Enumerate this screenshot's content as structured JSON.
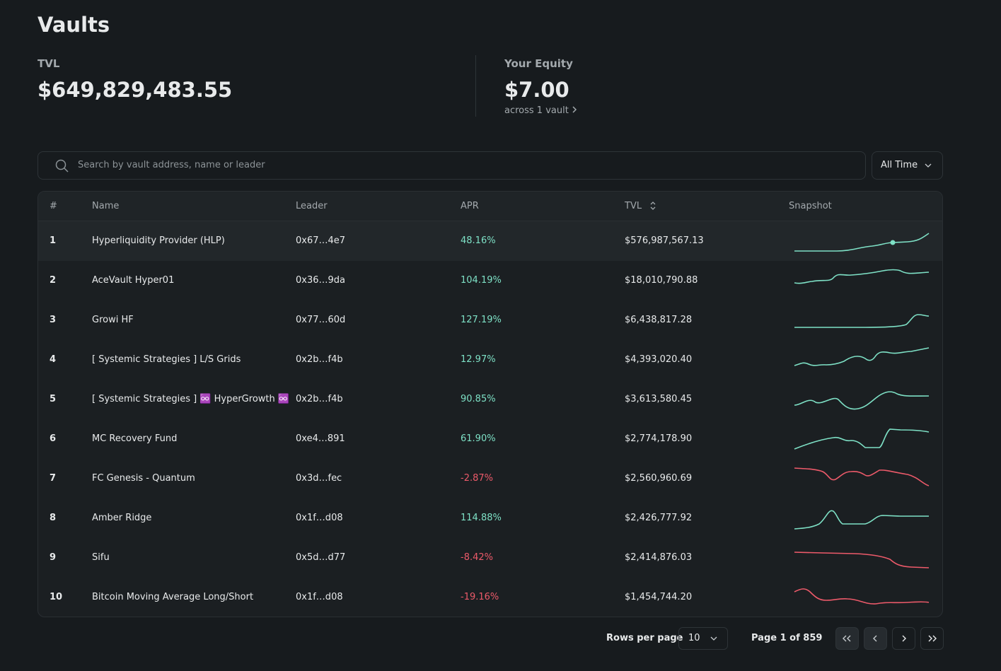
{
  "header": {
    "title": "Vaults"
  },
  "stats": [
    {
      "label": "TVL",
      "value": "$649,829,483.55"
    },
    {
      "label": "Your Equity",
      "value": "$7.00",
      "note": "across 1 vault"
    }
  ],
  "search": {
    "placeholder": "Search by vault address, name or leader"
  },
  "filter": {
    "label": "All Time"
  },
  "table": {
    "columns": [
      "#",
      "Name",
      "Leader",
      "APR",
      "TVL",
      "Snapshot"
    ],
    "rows": [
      [
        "1",
        "Hyperliquidity Provider (HLP)",
        "0x67…4e7",
        "48.16%",
        "$576,987,567.13"
      ],
      [
        "2",
        "AceVault Hyper01",
        "0x36…9da",
        "104.19%",
        "$18,010,790.88"
      ],
      [
        "3",
        "Growi HF",
        "0x77…60d",
        "127.19%",
        "$6,438,817.28"
      ],
      [
        "4",
        "[ Systemic Strategies ] L/S Grids",
        "0x2b…f4b",
        "12.97%",
        "$4,393,020.40"
      ],
      [
        "5",
        "[ Systemic Strategies ] ♾️ HyperGrowth ♾️",
        "0x2b…f4b",
        "90.85%",
        "$3,613,580.45"
      ],
      [
        "6",
        "MC Recovery Fund",
        "0xe4…891",
        "61.90%",
        "$2,774,178.90"
      ],
      [
        "7",
        "FC Genesis - Quantum",
        "0x3d…fec",
        "-2.87%",
        "$2,560,960.69"
      ],
      [
        "8",
        "Amber Ridge",
        "0x1f…d08",
        "114.88%",
        "$2,426,777.92"
      ],
      [
        "9",
        "Sifu",
        "0x5d…d77",
        "-8.42%",
        "$2,414,876.03"
      ],
      [
        "10",
        "Bitcoin Moving Average Long/Short",
        "0x1f…d08",
        "-19.16%",
        "$1,454,744.20"
      ]
    ]
  },
  "pagination": {
    "rows_per_page_label": "Rows per page",
    "rows_per_page": "10",
    "page": "Page 1 of 859"
  }
}
